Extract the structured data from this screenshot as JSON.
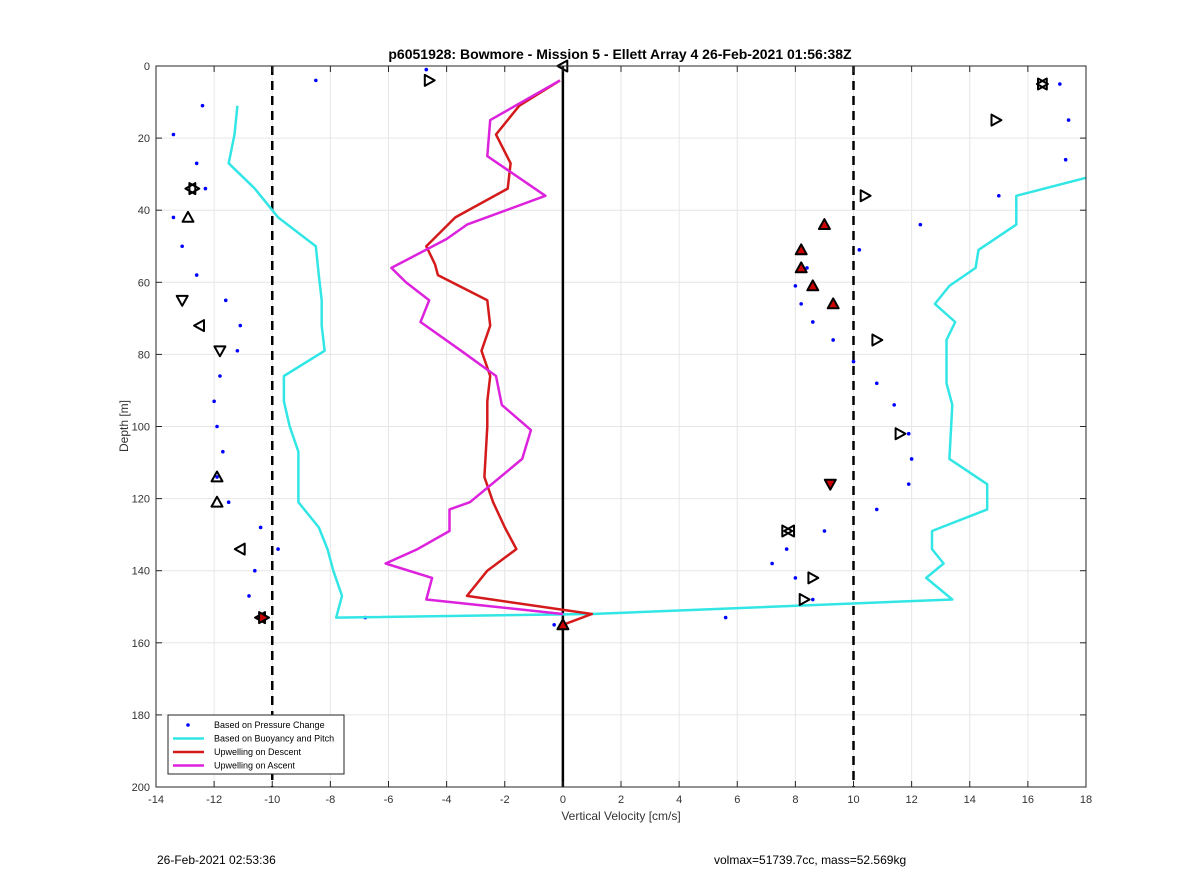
{
  "footer": {
    "left": "26-Feb-2021 02:53:36",
    "right": "volmax=51739.7cc, mass=52.569kg"
  },
  "chart_data": {
    "type": "line",
    "title": "p6051928: Bowmore - Mission 5 - Ellett Array 4 26-Feb-2021 01:56:38Z",
    "xlabel": "Vertical Velocity [cm/s]",
    "ylabel": "Depth [m]",
    "xlim": [
      -14,
      18
    ],
    "ylim": [
      0,
      200
    ],
    "y_reversed": true,
    "x_ticks": [
      -14,
      -12,
      -10,
      -8,
      -6,
      -4,
      -2,
      0,
      2,
      4,
      6,
      8,
      10,
      12,
      14,
      16,
      18
    ],
    "y_ticks": [
      0,
      20,
      40,
      60,
      80,
      100,
      120,
      140,
      160,
      180,
      200
    ],
    "grid": true,
    "legend_position": "bottom-left",
    "reference_lines": [
      {
        "x": -10,
        "style": "dashed",
        "color": "#000000"
      },
      {
        "x": 0,
        "style": "solid",
        "color": "#000000"
      },
      {
        "x": 10,
        "style": "dashed",
        "color": "#000000"
      }
    ],
    "series": [
      {
        "name": "Based on Pressure Change",
        "style": "dots",
        "color": "#0000ff",
        "points": [
          [
            -4.7,
            1
          ],
          [
            -8.5,
            4
          ],
          [
            -12.4,
            11
          ],
          [
            -13.4,
            19
          ],
          [
            -12.6,
            27
          ],
          [
            -12.3,
            34
          ],
          [
            -13.4,
            42
          ],
          [
            -13.1,
            50
          ],
          [
            -12.6,
            58
          ],
          [
            -11.6,
            65
          ],
          [
            -11.1,
            72
          ],
          [
            -11.2,
            79
          ],
          [
            -11.8,
            86
          ],
          [
            -12.0,
            93
          ],
          [
            -11.9,
            100
          ],
          [
            -11.7,
            107
          ],
          [
            -11.9,
            114
          ],
          [
            -11.5,
            121
          ],
          [
            -10.4,
            128
          ],
          [
            -9.8,
            134
          ],
          [
            -10.6,
            140
          ],
          [
            -10.8,
            147
          ],
          [
            -10.3,
            153
          ],
          [
            -6.8,
            153
          ],
          [
            -0.3,
            155
          ],
          [
            17.1,
            5
          ],
          [
            17.4,
            15
          ],
          [
            17.3,
            26
          ],
          [
            15.0,
            36
          ],
          [
            12.3,
            44
          ],
          [
            10.2,
            51
          ],
          [
            8.4,
            56
          ],
          [
            8.0,
            61
          ],
          [
            8.2,
            66
          ],
          [
            8.6,
            71
          ],
          [
            9.3,
            76
          ],
          [
            10.0,
            82
          ],
          [
            10.8,
            88
          ],
          [
            11.4,
            94
          ],
          [
            11.9,
            102
          ],
          [
            12.0,
            109
          ],
          [
            11.9,
            116
          ],
          [
            10.8,
            123
          ],
          [
            9.0,
            129
          ],
          [
            7.7,
            134
          ],
          [
            7.2,
            138
          ],
          [
            8.0,
            142
          ],
          [
            8.6,
            148
          ],
          [
            5.6,
            153
          ]
        ]
      },
      {
        "name": "Based on Buoyancy and Pitch",
        "style": "line",
        "color": "#33e6e6",
        "segments": [
          [
            [
              -11.2,
              11
            ],
            [
              -11.3,
              19
            ],
            [
              -11.5,
              27
            ],
            [
              -10.6,
              34
            ],
            [
              -10.0,
              40
            ],
            [
              -9.8,
              42
            ],
            [
              -8.5,
              50
            ],
            [
              -8.4,
              58
            ],
            [
              -8.3,
              65
            ],
            [
              -8.3,
              72
            ],
            [
              -8.2,
              79
            ],
            [
              -9.6,
              86
            ],
            [
              -9.6,
              93
            ],
            [
              -9.4,
              100
            ],
            [
              -9.1,
              107
            ],
            [
              -9.1,
              114
            ],
            [
              -9.1,
              121
            ],
            [
              -8.4,
              128
            ],
            [
              -8.1,
              134
            ],
            [
              -7.9,
              140
            ],
            [
              -7.6,
              147
            ],
            [
              -7.8,
              153
            ],
            [
              1.0,
              152
            ],
            [
              13.4,
              148
            ],
            [
              12.5,
              142
            ],
            [
              13.1,
              138
            ],
            [
              12.7,
              134
            ],
            [
              12.7,
              129
            ],
            [
              14.6,
              123
            ],
            [
              14.6,
              116
            ],
            [
              13.3,
              109
            ],
            [
              13.4,
              94
            ],
            [
              13.2,
              88
            ],
            [
              13.2,
              76
            ],
            [
              13.5,
              71
            ],
            [
              12.8,
              66
            ],
            [
              13.3,
              61
            ],
            [
              14.2,
              56
            ],
            [
              14.3,
              51
            ],
            [
              15.6,
              44
            ],
            [
              15.6,
              36
            ],
            [
              18.0,
              31
            ]
          ]
        ]
      },
      {
        "name": "Upwelling on Descent",
        "style": "line",
        "color": "#d41a1a",
        "points": [
          [
            -0.1,
            4
          ],
          [
            -1.5,
            11
          ],
          [
            -2.3,
            19
          ],
          [
            -1.8,
            27
          ],
          [
            -1.9,
            34
          ],
          [
            -3.7,
            42
          ],
          [
            -4.7,
            50
          ],
          [
            -4.4,
            55
          ],
          [
            -4.3,
            58
          ],
          [
            -2.6,
            65
          ],
          [
            -2.5,
            72
          ],
          [
            -2.8,
            79
          ],
          [
            -2.5,
            86
          ],
          [
            -2.6,
            93
          ],
          [
            -2.6,
            100
          ],
          [
            -2.7,
            114
          ],
          [
            -2.4,
            121
          ],
          [
            -2.0,
            128
          ],
          [
            -1.6,
            134
          ],
          [
            -2.6,
            140
          ],
          [
            -3.3,
            147
          ],
          [
            1.0,
            152
          ],
          [
            0,
            155
          ]
        ]
      },
      {
        "name": "Upwelling on Ascent",
        "style": "line",
        "color": "#dd22dd",
        "points": [
          [
            -0.1,
            4
          ],
          [
            -2.5,
            15
          ],
          [
            -2.6,
            25
          ],
          [
            -0.6,
            36
          ],
          [
            -3.3,
            44
          ],
          [
            -4.0,
            48
          ],
          [
            -5.9,
            56
          ],
          [
            -5.4,
            60
          ],
          [
            -4.6,
            65
          ],
          [
            -4.9,
            71
          ],
          [
            -3.5,
            79
          ],
          [
            -2.3,
            86
          ],
          [
            -2.1,
            94
          ],
          [
            -1.1,
            101
          ],
          [
            -1.4,
            109
          ],
          [
            -3.2,
            121
          ],
          [
            -3.9,
            123
          ],
          [
            -3.9,
            129
          ],
          [
            -5.0,
            134
          ],
          [
            -6.1,
            138
          ],
          [
            -4.5,
            142
          ],
          [
            -4.7,
            148
          ],
          [
            0,
            152
          ]
        ]
      },
      {
        "name": "",
        "style": "markers",
        "points": [
          {
            "x": 0,
            "y": 0,
            "shape": "left",
            "fill": "none"
          },
          {
            "x": -4.6,
            "y": 4,
            "shape": "right",
            "fill": "none"
          },
          {
            "x": 16.5,
            "y": 5,
            "shape": "right",
            "fill": "none"
          },
          {
            "x": 16.5,
            "y": 5,
            "shape": "left",
            "fill": "none"
          },
          {
            "x": 14.9,
            "y": 15,
            "shape": "right",
            "fill": "none"
          },
          {
            "x": -12.8,
            "y": 34,
            "shape": "left",
            "fill": "none"
          },
          {
            "x": -12.7,
            "y": 34,
            "shape": "right",
            "fill": "none"
          },
          {
            "x": 10.4,
            "y": 36,
            "shape": "right",
            "fill": "none"
          },
          {
            "x": -12.9,
            "y": 42,
            "shape": "up",
            "fill": "none"
          },
          {
            "x": -13.1,
            "y": 65,
            "shape": "down",
            "fill": "none"
          },
          {
            "x": -12.5,
            "y": 72,
            "shape": "left",
            "fill": "none"
          },
          {
            "x": -11.8,
            "y": 79,
            "shape": "down",
            "fill": "none"
          },
          {
            "x": 10.8,
            "y": 76,
            "shape": "right",
            "fill": "none"
          },
          {
            "x": 11.6,
            "y": 102,
            "shape": "right",
            "fill": "none"
          },
          {
            "x": -11.9,
            "y": 114,
            "shape": "up",
            "fill": "none"
          },
          {
            "x": -11.9,
            "y": 121,
            "shape": "up",
            "fill": "none"
          },
          {
            "x": -11.1,
            "y": 134,
            "shape": "left",
            "fill": "none"
          },
          {
            "x": 7.8,
            "y": 129,
            "shape": "left",
            "fill": "none"
          },
          {
            "x": 7.7,
            "y": 129,
            "shape": "right",
            "fill": "none"
          },
          {
            "x": 8.6,
            "y": 142,
            "shape": "right",
            "fill": "none"
          },
          {
            "x": 8.3,
            "y": 148,
            "shape": "right",
            "fill": "none"
          },
          {
            "x": -10.4,
            "y": 153,
            "shape": "left",
            "fill": "red"
          },
          {
            "x": -10.3,
            "y": 153,
            "shape": "right",
            "fill": "red"
          },
          {
            "x": 0,
            "y": 155,
            "shape": "up",
            "fill": "red"
          },
          {
            "x": 9.0,
            "y": 44,
            "shape": "up",
            "fill": "red"
          },
          {
            "x": 8.2,
            "y": 51,
            "shape": "up",
            "fill": "red"
          },
          {
            "x": 8.2,
            "y": 56,
            "shape": "up",
            "fill": "red"
          },
          {
            "x": 8.6,
            "y": 61,
            "shape": "up",
            "fill": "red"
          },
          {
            "x": 9.3,
            "y": 66,
            "shape": "up",
            "fill": "red"
          },
          {
            "x": 9.2,
            "y": 116,
            "shape": "down",
            "fill": "red"
          }
        ]
      }
    ]
  }
}
